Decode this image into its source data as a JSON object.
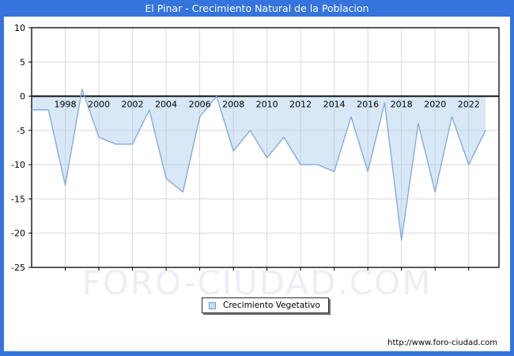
{
  "window": {
    "title": "El Pinar - Crecimiento Natural de la Poblacion"
  },
  "chart_data": {
    "type": "area",
    "title": "El Pinar - Crecimiento Natural de la Poblacion",
    "xlabel": "",
    "ylabel": "",
    "xlim": [
      1996,
      2023.8
    ],
    "ylim": [
      -25,
      10
    ],
    "yticks": [
      10,
      5,
      0,
      -5,
      -10,
      -15,
      -20,
      -25
    ],
    "xticks": [
      1998,
      2000,
      2002,
      2004,
      2006,
      2008,
      2010,
      2012,
      2014,
      2016,
      2018,
      2020,
      2022
    ],
    "grid": true,
    "legend_position": "bottom-center",
    "series": [
      {
        "name": "Crecimiento Vegetativo",
        "years": [
          1996,
          1997,
          1998,
          1999,
          2000,
          2001,
          2002,
          2003,
          2004,
          2005,
          2006,
          2007,
          2008,
          2009,
          2010,
          2011,
          2012,
          2013,
          2014,
          2015,
          2016,
          2017,
          2018,
          2019,
          2020,
          2021,
          2022,
          2023
        ],
        "values": [
          -2,
          -2,
          -13,
          1,
          -6,
          -7,
          -7,
          -2,
          -12,
          -14,
          -3,
          0,
          -8,
          -5,
          -9,
          -6,
          -10,
          -10,
          -11,
          -3,
          -11,
          -1,
          -21,
          -4,
          -14,
          -3,
          -10,
          -5
        ]
      }
    ],
    "colors": {
      "line": "#88abdb",
      "fill": "rgba(163,200,235,0.42)",
      "grid": "#d8d8d8",
      "zero_line": "#000000",
      "axis_border": "#000000"
    }
  },
  "legend": {
    "label": "Crecimiento Vegetativo",
    "swatch_fill": "#c9ddf2",
    "swatch_border": "#6f9bcd"
  },
  "watermark": {
    "text": "FORO-CIUDAD.COM"
  },
  "footer": {
    "url": "http://www.foro-ciudad.com"
  },
  "theme": {
    "accent": "#3474dc"
  }
}
